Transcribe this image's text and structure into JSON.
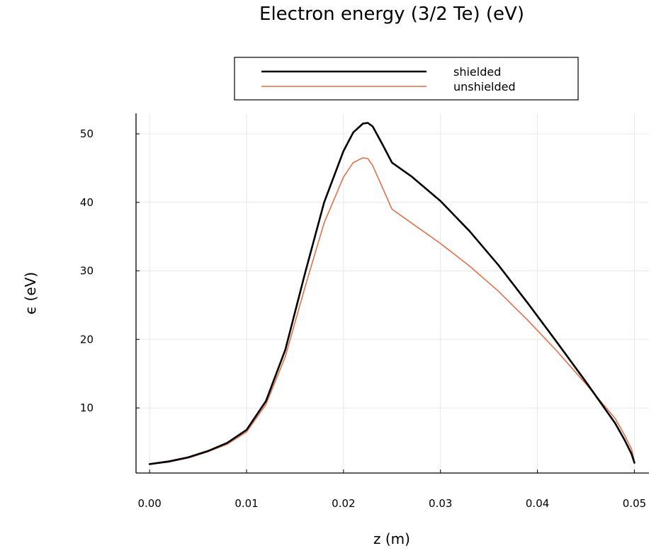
{
  "chart_data": {
    "type": "line",
    "title": "Electron energy (3/2 Te) (eV)",
    "xlabel": "z (m)",
    "ylabel": "ϵ (eV)",
    "xlim": [
      -0.0014,
      0.0515
    ],
    "ylim": [
      0.5,
      53
    ],
    "xticks": [
      0.0,
      0.01,
      0.02,
      0.03,
      0.04,
      0.05
    ],
    "xtick_labels": [
      "0.00",
      "0.01",
      "0.02",
      "0.03",
      "0.04",
      "0.05"
    ],
    "yticks": [
      10,
      20,
      30,
      40,
      50
    ],
    "ytick_labels": [
      "10",
      "20",
      "30",
      "40",
      "50"
    ],
    "grid": true,
    "legend_position": "top-center",
    "series": [
      {
        "name": "shielded",
        "color": "#000000",
        "x": [
          0.0,
          0.002,
          0.004,
          0.006,
          0.008,
          0.01,
          0.012,
          0.014,
          0.016,
          0.018,
          0.02,
          0.021,
          0.022,
          0.0225,
          0.023,
          0.024,
          0.025,
          0.027,
          0.03,
          0.033,
          0.036,
          0.039,
          0.042,
          0.045,
          0.048,
          0.049,
          0.0497,
          0.05
        ],
        "y": [
          1.8,
          2.2,
          2.8,
          3.7,
          4.9,
          6.8,
          11.0,
          18.5,
          29.5,
          40.0,
          47.5,
          50.2,
          51.5,
          51.6,
          51.1,
          48.5,
          45.8,
          43.8,
          40.2,
          35.8,
          30.8,
          25.3,
          19.6,
          13.8,
          7.8,
          5.3,
          3.3,
          2.0
        ]
      },
      {
        "name": "unshielded",
        "color": "#e26f46",
        "x": [
          0.0,
          0.002,
          0.004,
          0.006,
          0.008,
          0.01,
          0.012,
          0.014,
          0.016,
          0.018,
          0.02,
          0.021,
          0.022,
          0.0225,
          0.023,
          0.024,
          0.025,
          0.027,
          0.03,
          0.033,
          0.036,
          0.039,
          0.042,
          0.045,
          0.048,
          0.049,
          0.0497,
          0.05
        ],
        "y": [
          1.8,
          2.1,
          2.7,
          3.6,
          4.7,
          6.5,
          10.5,
          17.5,
          27.5,
          37.0,
          43.7,
          45.8,
          46.5,
          46.4,
          45.4,
          42.2,
          39.0,
          37.0,
          34.0,
          30.7,
          27.0,
          22.8,
          18.3,
          13.5,
          8.5,
          6.0,
          4.0,
          2.2
        ]
      }
    ]
  }
}
